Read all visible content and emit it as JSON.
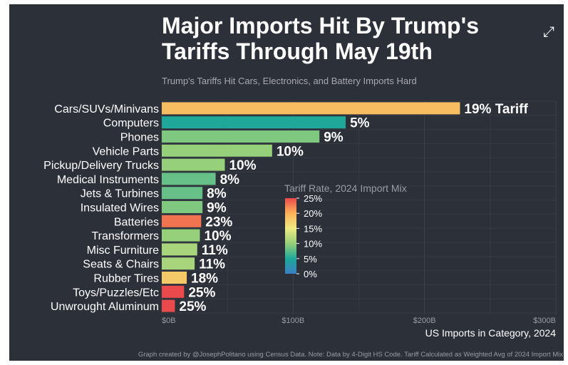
{
  "title": "Major Imports Hit By Trump's Tariffs Through May 19th",
  "subtitle": "Trump's Tariffs Hit Cars, Electronics, and Battery Imports Hard",
  "footer": "Graph created by @JosephPolitano using Census Data. Note: Data by 4-Digit HS Code. Tariff Calculated as Weighted Avg of 2024 Import Mix",
  "expand_icon": "expand-icon",
  "chart_data": {
    "type": "bar",
    "orientation": "horizontal",
    "title": "Major Imports Hit By Trump's Tariffs Through May 19th",
    "subtitle": "Trump's Tariffs Hit Cars, Electronics, and Battery Imports Hard",
    "xlabel": "US Imports in Category, 2024",
    "xlim": [
      0,
      300
    ],
    "xticks": [
      0,
      100,
      200,
      300
    ],
    "xtick_labels": [
      "$0B",
      "$100B",
      "$200B",
      "$300B"
    ],
    "grid": true,
    "categories": [
      "Cars/SUVs/Minivans",
      "Computers",
      "Phones",
      "Vehicle Parts",
      "Pickup/Delivery Trucks",
      "Medical Instruments",
      "Jets & Turbines",
      "Insulated Wires",
      "Batteries",
      "Transformers",
      "Misc Furniture",
      "Seats & Chairs",
      "Rubber Tires",
      "Toys/Puzzles/Etc",
      "Unwrought Aluminum"
    ],
    "values": [
      227,
      140,
      120,
      84,
      48,
      41,
      31,
      31,
      30,
      29,
      27,
      25,
      19,
      17,
      10
    ],
    "tariff_rates": [
      19,
      5,
      9,
      10,
      10,
      8,
      8,
      9,
      23,
      10,
      11,
      11,
      18,
      25,
      25
    ],
    "data_labels": [
      "19% Tariff",
      "5%",
      "9%",
      "10%",
      "10%",
      "8%",
      "8%",
      "9%",
      "23%",
      "10%",
      "11%",
      "11%",
      "18%",
      "25%",
      "25%"
    ],
    "legend": {
      "title": "Tariff Rate, 2024 Import Mix",
      "tick_labels": [
        "25%",
        "20%",
        "15%",
        "10%",
        "5%",
        "0%"
      ],
      "range": [
        0,
        25
      ],
      "placement": "center"
    }
  }
}
